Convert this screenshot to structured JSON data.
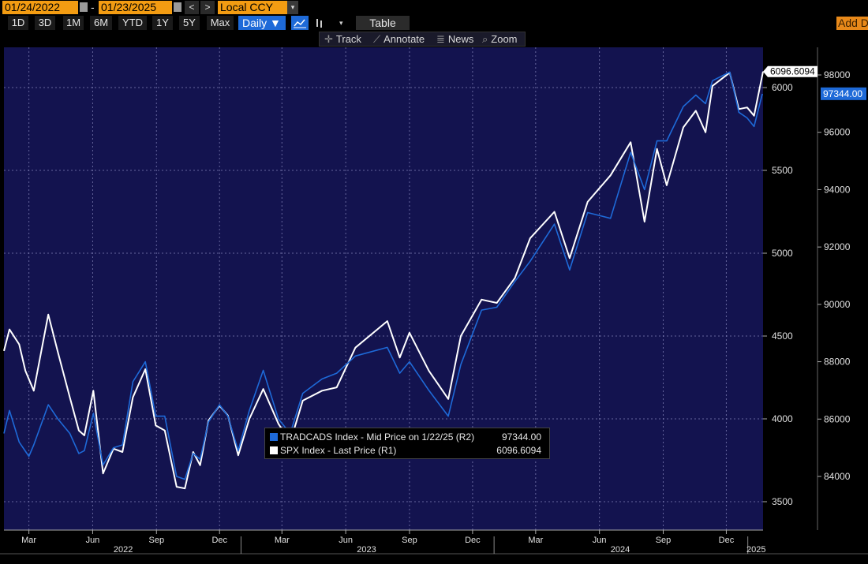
{
  "toolbar": {
    "start_date": "01/24/2022",
    "end_date": "01/23/2025",
    "date_sep": "-",
    "prev": "<",
    "next": ">",
    "currency": "Local CCY",
    "currency_dd": "▾"
  },
  "ranges": [
    "1D",
    "3D",
    "1M",
    "6M",
    "YTD",
    "1Y",
    "5Y",
    "Max"
  ],
  "frequency": "Daily ▼",
  "table_label": "Table",
  "add_data": "Add Data",
  "tools": {
    "track": "Track",
    "annotate": "Annotate",
    "news": "News",
    "zoom": "Zoom"
  },
  "colors": {
    "background": "#13134f",
    "spx": "#ffffff",
    "tradcads": "#1e6ad8",
    "menu_orange": "#f39c12"
  },
  "legend": {
    "tradcads_label": "TRADCADS Index - Mid Price on 1/22/25 (R2)",
    "tradcads_value": "97344.00",
    "spx_label": "SPX Index - Last Price (R1)",
    "spx_value": "6096.6094"
  },
  "chart_data": {
    "type": "line",
    "grid": true,
    "x_range": [
      "2022-01-24",
      "2025-01-23"
    ],
    "x_ticks": [
      "Mar",
      "Jun",
      "Sep",
      "Dec",
      "Mar",
      "Jun",
      "Sep",
      "Dec",
      "Mar",
      "Jun",
      "Sep",
      "Dec"
    ],
    "x_tick_dates": [
      "2022-03-01",
      "2022-06-01",
      "2022-09-01",
      "2022-12-01",
      "2023-03-01",
      "2023-06-01",
      "2023-09-01",
      "2023-12-01",
      "2024-03-01",
      "2024-06-01",
      "2024-09-01",
      "2024-12-01"
    ],
    "year_labels": [
      {
        "label": "2022",
        "date": "2022-07-15"
      },
      {
        "label": "2023",
        "date": "2023-07-01"
      },
      {
        "label": "2024",
        "date": "2024-07-01"
      },
      {
        "label": "2025",
        "date": "2025-01-13"
      }
    ],
    "year_boundaries": [
      "2023-01-01",
      "2024-01-01",
      "2025-01-01"
    ],
    "y_left_axis": {
      "name": "R1",
      "ticks": [
        3500,
        4000,
        4500,
        5000,
        5500,
        6000
      ],
      "ylim": [
        3500,
        6000
      ]
    },
    "y_right_axis": {
      "name": "R2",
      "ticks": [
        84000,
        86000,
        88000,
        90000,
        92000,
        94000,
        96000,
        98000
      ],
      "ylim": [
        84000,
        98000
      ]
    },
    "last_labels": {
      "spx": "6096.6094",
      "tradcads": "97344.00"
    },
    "series": [
      {
        "name": "SPX Index - Last Price (R1)",
        "axis": "left",
        "color": "#ffffff",
        "points": [
          [
            "2022-01-24",
            4410
          ],
          [
            "2022-02-01",
            4540
          ],
          [
            "2022-02-15",
            4450
          ],
          [
            "2022-02-24",
            4290
          ],
          [
            "2022-03-08",
            4170
          ],
          [
            "2022-03-29",
            4630
          ],
          [
            "2022-04-12",
            4400
          ],
          [
            "2022-04-29",
            4130
          ],
          [
            "2022-05-12",
            3930
          ],
          [
            "2022-05-20",
            3900
          ],
          [
            "2022-06-02",
            4170
          ],
          [
            "2022-06-16",
            3670
          ],
          [
            "2022-07-01",
            3820
          ],
          [
            "2022-07-14",
            3800
          ],
          [
            "2022-07-29",
            4130
          ],
          [
            "2022-08-16",
            4300
          ],
          [
            "2022-08-31",
            3960
          ],
          [
            "2022-09-13",
            3930
          ],
          [
            "2022-09-30",
            3590
          ],
          [
            "2022-10-12",
            3580
          ],
          [
            "2022-10-24",
            3800
          ],
          [
            "2022-11-03",
            3720
          ],
          [
            "2022-11-15",
            3990
          ],
          [
            "2022-12-01",
            4080
          ],
          [
            "2022-12-13",
            4020
          ],
          [
            "2022-12-28",
            3780
          ],
          [
            "2023-01-13",
            4000
          ],
          [
            "2023-02-02",
            4180
          ],
          [
            "2023-02-24",
            3970
          ],
          [
            "2023-03-13",
            3860
          ],
          [
            "2023-03-31",
            4110
          ],
          [
            "2023-04-28",
            4170
          ],
          [
            "2023-05-19",
            4190
          ],
          [
            "2023-06-15",
            4430
          ],
          [
            "2023-07-31",
            4590
          ],
          [
            "2023-08-18",
            4370
          ],
          [
            "2023-09-01",
            4520
          ],
          [
            "2023-09-29",
            4290
          ],
          [
            "2023-10-27",
            4120
          ],
          [
            "2023-11-14",
            4500
          ],
          [
            "2023-12-14",
            4720
          ],
          [
            "2024-01-05",
            4700
          ],
          [
            "2024-01-31",
            4850
          ],
          [
            "2024-02-22",
            5090
          ],
          [
            "2024-03-28",
            5250
          ],
          [
            "2024-04-19",
            4970
          ],
          [
            "2024-05-15",
            5310
          ],
          [
            "2024-06-17",
            5470
          ],
          [
            "2024-07-16",
            5670
          ],
          [
            "2024-08-05",
            5190
          ],
          [
            "2024-08-23",
            5630
          ],
          [
            "2024-09-06",
            5410
          ],
          [
            "2024-09-30",
            5760
          ],
          [
            "2024-10-18",
            5860
          ],
          [
            "2024-11-01",
            5730
          ],
          [
            "2024-11-11",
            6010
          ],
          [
            "2024-12-06",
            6090
          ],
          [
            "2024-12-19",
            5870
          ],
          [
            "2024-12-31",
            5880
          ],
          [
            "2025-01-10",
            5830
          ],
          [
            "2025-01-23",
            6096.6094
          ]
        ]
      },
      {
        "name": "TRADCADS Index - Mid Price on 1/22/25 (R2)",
        "axis": "right",
        "color": "#1e6ad8",
        "points": [
          [
            "2022-01-24",
            85500
          ],
          [
            "2022-02-01",
            86300
          ],
          [
            "2022-02-15",
            85200
          ],
          [
            "2022-03-01",
            84700
          ],
          [
            "2022-03-08",
            85100
          ],
          [
            "2022-03-29",
            86500
          ],
          [
            "2022-04-12",
            86000
          ],
          [
            "2022-04-29",
            85500
          ],
          [
            "2022-05-12",
            84800
          ],
          [
            "2022-05-20",
            84900
          ],
          [
            "2022-06-02",
            86200
          ],
          [
            "2022-06-16",
            84400
          ],
          [
            "2022-07-01",
            85000
          ],
          [
            "2022-07-14",
            85100
          ],
          [
            "2022-07-29",
            87300
          ],
          [
            "2022-08-16",
            88000
          ],
          [
            "2022-08-31",
            86100
          ],
          [
            "2022-09-13",
            86100
          ],
          [
            "2022-09-30",
            84000
          ],
          [
            "2022-10-12",
            83900
          ],
          [
            "2022-10-24",
            84800
          ],
          [
            "2022-11-03",
            84600
          ],
          [
            "2022-11-15",
            85900
          ],
          [
            "2022-12-01",
            86500
          ],
          [
            "2022-12-13",
            86100
          ],
          [
            "2022-12-28",
            84900
          ],
          [
            "2023-01-13",
            86300
          ],
          [
            "2023-02-02",
            87700
          ],
          [
            "2023-02-24",
            86000
          ],
          [
            "2023-03-13",
            85500
          ],
          [
            "2023-03-31",
            86900
          ],
          [
            "2023-04-28",
            87400
          ],
          [
            "2023-05-19",
            87600
          ],
          [
            "2023-06-15",
            88200
          ],
          [
            "2023-07-31",
            88500
          ],
          [
            "2023-08-18",
            87600
          ],
          [
            "2023-09-01",
            88000
          ],
          [
            "2023-09-29",
            87000
          ],
          [
            "2023-10-27",
            86100
          ],
          [
            "2023-11-14",
            87900
          ],
          [
            "2023-12-14",
            89800
          ],
          [
            "2024-01-05",
            89900
          ],
          [
            "2024-01-31",
            90800
          ],
          [
            "2024-02-22",
            91500
          ],
          [
            "2024-03-28",
            92800
          ],
          [
            "2024-04-19",
            91200
          ],
          [
            "2024-05-15",
            93200
          ],
          [
            "2024-06-17",
            93000
          ],
          [
            "2024-07-16",
            95300
          ],
          [
            "2024-08-05",
            94000
          ],
          [
            "2024-08-23",
            95700
          ],
          [
            "2024-09-06",
            95700
          ],
          [
            "2024-09-30",
            96900
          ],
          [
            "2024-10-18",
            97300
          ],
          [
            "2024-11-01",
            97000
          ],
          [
            "2024-11-11",
            97800
          ],
          [
            "2024-12-06",
            98100
          ],
          [
            "2024-12-19",
            96700
          ],
          [
            "2024-12-31",
            96500
          ],
          [
            "2025-01-10",
            96200
          ],
          [
            "2025-01-22",
            97344
          ]
        ]
      }
    ]
  }
}
